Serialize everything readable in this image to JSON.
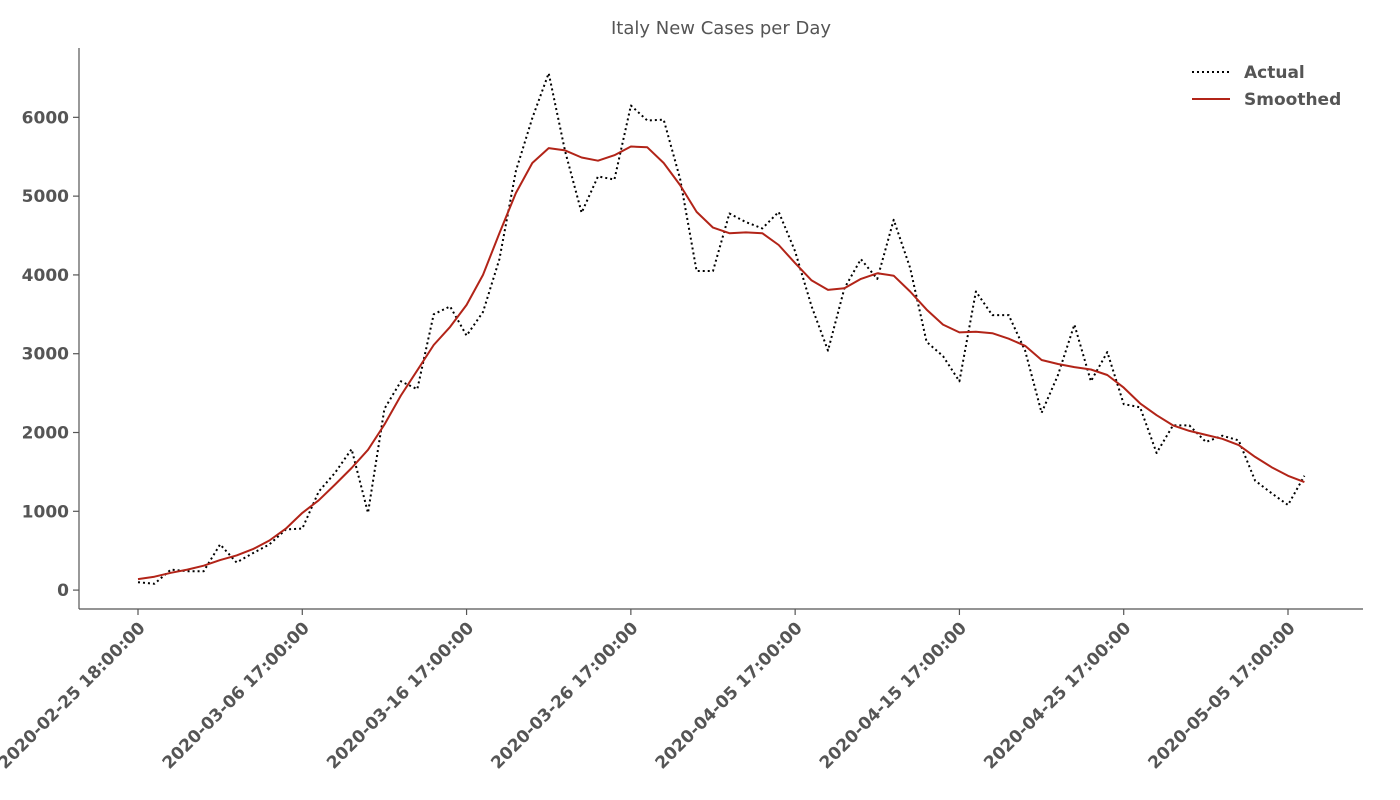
{
  "chart_data": {
    "type": "line",
    "title": "Italy New Cases per Day",
    "xlabel": "",
    "ylabel": "",
    "ylim": [
      -240,
      6880
    ],
    "yticks": [
      0,
      1000,
      2000,
      3000,
      4000,
      5000,
      6000
    ],
    "xtick_labels": [
      "2020-02-25 18:00:00",
      "2020-03-06 17:00:00",
      "2020-03-16 17:00:00",
      "2020-03-26 17:00:00",
      "2020-04-05 17:00:00",
      "2020-04-15 17:00:00",
      "2020-04-25 17:00:00",
      "2020-05-05 17:00:00"
    ],
    "x": [
      "2020-02-25",
      "2020-02-26",
      "2020-02-27",
      "2020-02-28",
      "2020-02-29",
      "2020-03-01",
      "2020-03-02",
      "2020-03-03",
      "2020-03-04",
      "2020-03-05",
      "2020-03-06",
      "2020-03-07",
      "2020-03-08",
      "2020-03-09",
      "2020-03-10",
      "2020-03-11",
      "2020-03-12",
      "2020-03-13",
      "2020-03-14",
      "2020-03-15",
      "2020-03-16",
      "2020-03-17",
      "2020-03-18",
      "2020-03-19",
      "2020-03-20",
      "2020-03-21",
      "2020-03-22",
      "2020-03-23",
      "2020-03-24",
      "2020-03-25",
      "2020-03-26",
      "2020-03-27",
      "2020-03-28",
      "2020-03-29",
      "2020-03-30",
      "2020-03-31",
      "2020-04-01",
      "2020-04-02",
      "2020-04-03",
      "2020-04-04",
      "2020-04-05",
      "2020-04-06",
      "2020-04-07",
      "2020-04-08",
      "2020-04-09",
      "2020-04-10",
      "2020-04-11",
      "2020-04-12",
      "2020-04-13",
      "2020-04-14",
      "2020-04-15",
      "2020-04-16",
      "2020-04-17",
      "2020-04-18",
      "2020-04-19",
      "2020-04-20",
      "2020-04-21",
      "2020-04-22",
      "2020-04-23",
      "2020-04-24",
      "2020-04-25",
      "2020-04-26",
      "2020-04-27",
      "2020-04-28",
      "2020-04-29",
      "2020-04-30",
      "2020-05-01",
      "2020-05-02",
      "2020-05-03",
      "2020-05-04",
      "2020-05-05",
      "2020-05-06"
    ],
    "series": [
      {
        "name": "Actual",
        "color": "#000000",
        "style": "dotted",
        "values": [
          100,
          80,
          260,
          240,
          240,
          580,
          350,
          470,
          580,
          770,
          780,
          1250,
          1490,
          1790,
          980,
          2300,
          2650,
          2550,
          3500,
          3600,
          3230,
          3530,
          4200,
          5320,
          5990,
          6560,
          5570,
          4790,
          5250,
          5210,
          6150,
          5960,
          5970,
          5220,
          4050,
          4050,
          4780,
          4670,
          4590,
          4800,
          4300,
          3600,
          3040,
          3830,
          4200,
          3950,
          4700,
          4090,
          3150,
          2970,
          2650,
          3790,
          3490,
          3490,
          3040,
          2250,
          2730,
          3370,
          2650,
          3020,
          2360,
          2320,
          1740,
          2090,
          2090,
          1880,
          1960,
          1900,
          1390,
          1230,
          1080,
          1450
        ]
      },
      {
        "name": "Smoothed",
        "color": "#b22418",
        "style": "solid",
        "values": [
          140,
          170,
          220,
          260,
          310,
          380,
          440,
          520,
          630,
          780,
          980,
          1140,
          1340,
          1550,
          1780,
          2100,
          2470,
          2790,
          3110,
          3340,
          3620,
          4000,
          4530,
          5040,
          5420,
          5610,
          5580,
          5490,
          5450,
          5520,
          5630,
          5620,
          5420,
          5140,
          4800,
          4600,
          4530,
          4540,
          4530,
          4380,
          4150,
          3930,
          3810,
          3830,
          3950,
          4020,
          3990,
          3790,
          3560,
          3370,
          3270,
          3280,
          3260,
          3190,
          3100,
          2920,
          2870,
          2830,
          2800,
          2730,
          2570,
          2370,
          2220,
          2090,
          2020,
          1970,
          1920,
          1840,
          1690,
          1560,
          1450,
          1370
        ]
      }
    ],
    "legend_position": "top-right",
    "grid": false
  }
}
